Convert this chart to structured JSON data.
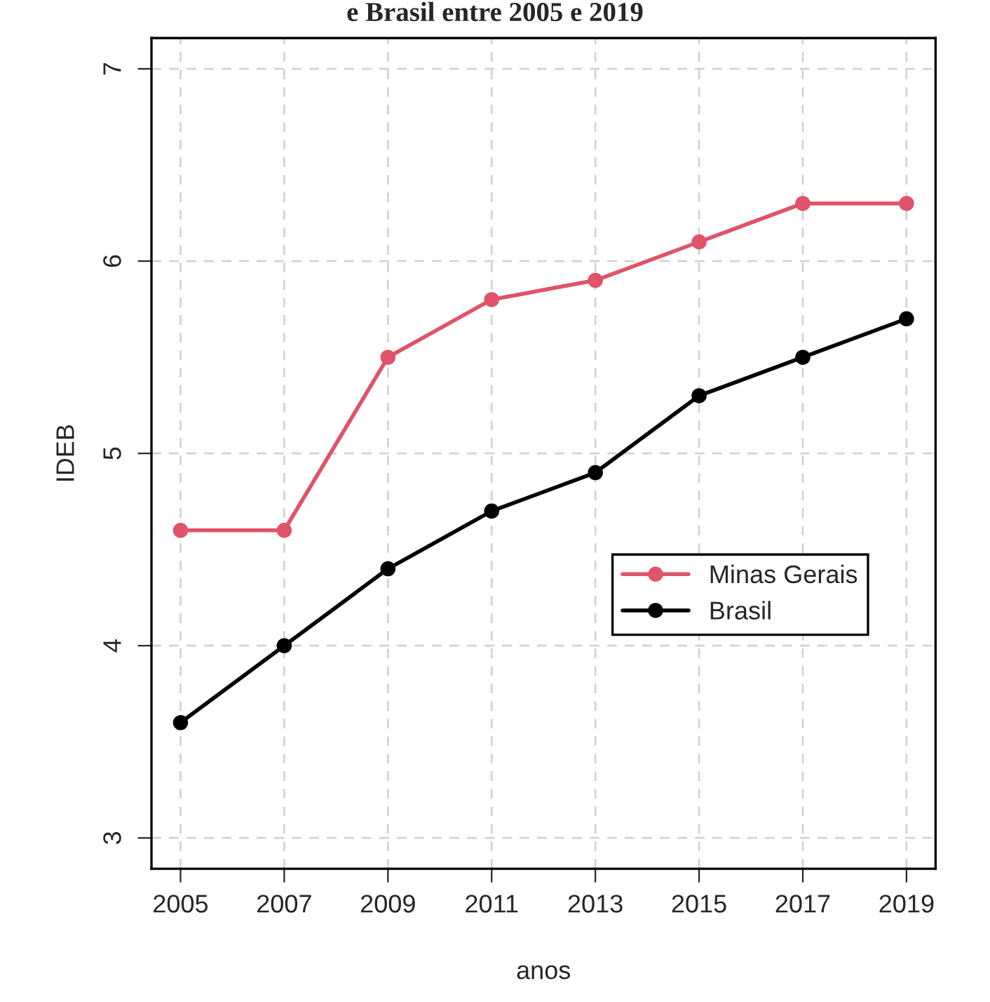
{
  "chart_data": {
    "type": "line",
    "title": "e Brasil entre 2005 e 2019",
    "xlabel": "anos",
    "ylabel": "IDEB",
    "x": [
      2005,
      2007,
      2009,
      2011,
      2013,
      2015,
      2017,
      2019
    ],
    "series": [
      {
        "name": "Minas Gerais",
        "color": "#df536b",
        "values": [
          4.6,
          4.6,
          5.5,
          5.8,
          5.9,
          6.1,
          6.3,
          6.3
        ]
      },
      {
        "name": "Brasil",
        "color": "#000000",
        "values": [
          3.6,
          4.0,
          4.4,
          4.7,
          4.9,
          5.3,
          5.5,
          5.7
        ]
      }
    ],
    "xlim": [
      2004.44,
      2019.56
    ],
    "xticks": [
      2005,
      2007,
      2009,
      2011,
      2013,
      2015,
      2017,
      2019
    ],
    "ylim": [
      2.84,
      7.16
    ],
    "yticks": [
      3,
      4,
      5,
      6,
      7
    ],
    "grid": true,
    "legend": "right",
    "marker": "circle",
    "line_style": "solid"
  }
}
